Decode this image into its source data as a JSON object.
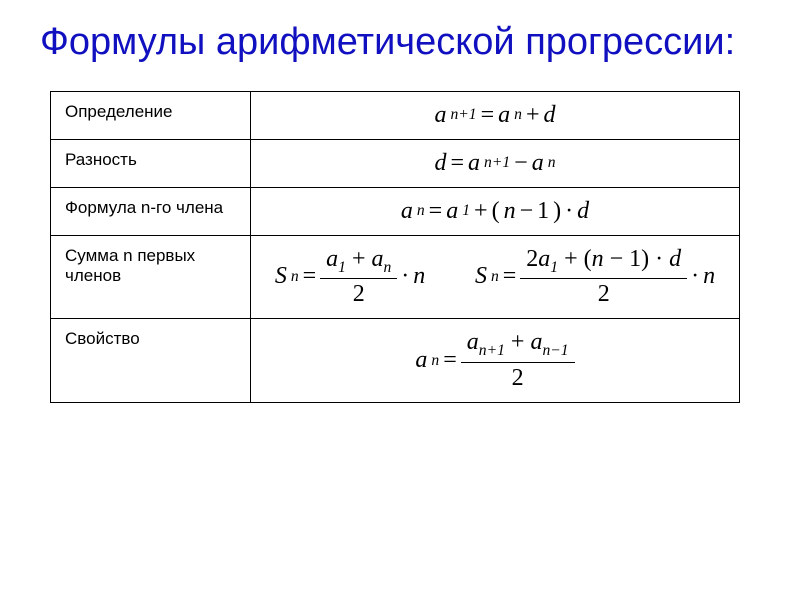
{
  "title": "Формулы арифметической прогрессии:",
  "rows": {
    "definition": {
      "label": "Определение"
    },
    "difference": {
      "label": "Разность"
    },
    "nth_term": {
      "label": "Формула n-го члена"
    },
    "sum": {
      "label": "Сумма n первых членов"
    },
    "property": {
      "label": "Свойство"
    }
  },
  "symbols": {
    "a": "a",
    "d": "d",
    "n": "n",
    "S": "S",
    "eq": "=",
    "plus": "+",
    "minus": "−",
    "dot": "·",
    "lpar": "(",
    "rpar": ")",
    "one": "1",
    "two": "2",
    "np1": "n+1",
    "nm1": "n−1",
    "sub1": "1",
    "subn": "n"
  },
  "style": {
    "title_color": "#1010c0",
    "title_fontsize": 38,
    "label_fontsize": 17,
    "formula_fontsize": 24,
    "border_color": "#000000",
    "background": "#ffffff"
  }
}
